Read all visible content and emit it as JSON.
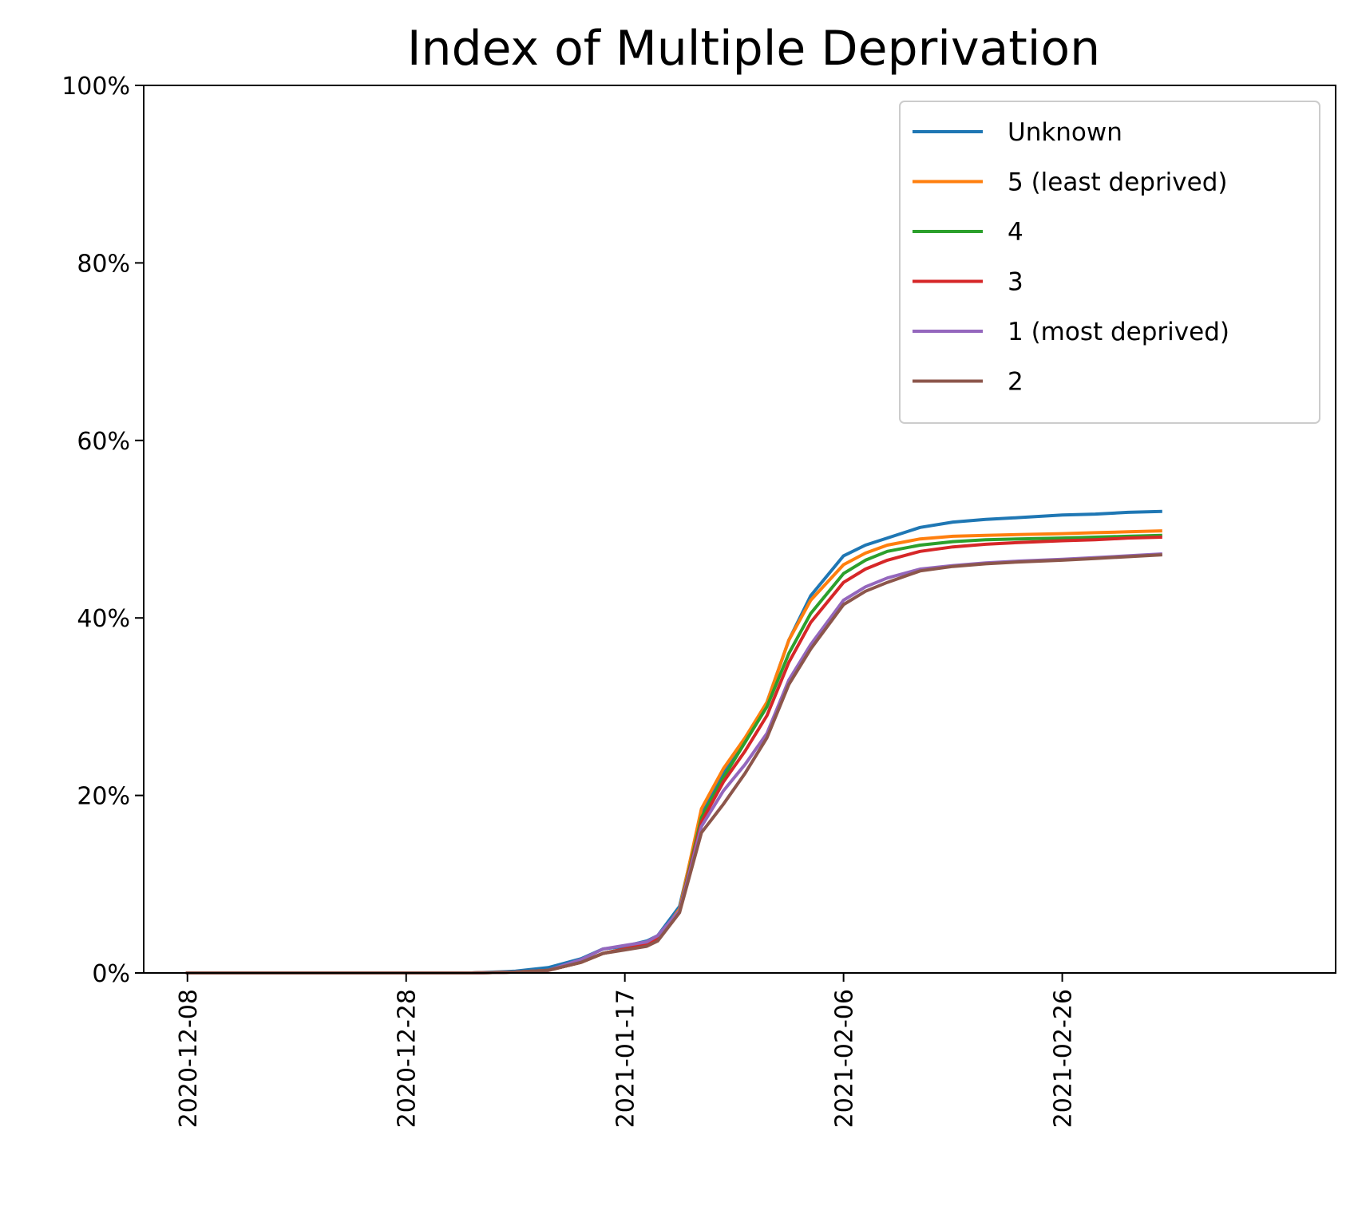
{
  "chart_data": {
    "type": "line",
    "title": "Index of Multiple Deprivation",
    "xlabel": "",
    "ylabel": "",
    "x_type": "date",
    "xlim": [
      "2020-12-04",
      "2021-03-23"
    ],
    "ylim": [
      0,
      100
    ],
    "y_format": "percent",
    "y_ticks": [
      0,
      20,
      40,
      60,
      80,
      100
    ],
    "y_tick_labels": [
      "0%",
      "20%",
      "40%",
      "60%",
      "80%",
      "100%"
    ],
    "x_ticks": [
      "2020-12-08",
      "2020-12-28",
      "2021-01-17",
      "2021-02-06",
      "2021-02-26"
    ],
    "grid": false,
    "legend_position": "top-right",
    "x": [
      "2020-12-08",
      "2020-12-18",
      "2020-12-28",
      "2021-01-03",
      "2021-01-07",
      "2021-01-10",
      "2021-01-13",
      "2021-01-15",
      "2021-01-17",
      "2021-01-19",
      "2021-01-20",
      "2021-01-22",
      "2021-01-24",
      "2021-01-26",
      "2021-01-28",
      "2021-01-30",
      "2021-02-01",
      "2021-02-03",
      "2021-02-06",
      "2021-02-08",
      "2021-02-10",
      "2021-02-13",
      "2021-02-16",
      "2021-02-19",
      "2021-02-22",
      "2021-02-26",
      "2021-03-01",
      "2021-03-04",
      "2021-03-07"
    ],
    "series": [
      {
        "name": "Unknown",
        "color": "#1f77b4",
        "values": [
          0,
          0,
          0,
          0,
          0.2,
          0.6,
          1.6,
          2.7,
          3.0,
          3.6,
          4.2,
          7.5,
          18.0,
          22.5,
          26.0,
          30.5,
          37.5,
          42.5,
          47.0,
          48.2,
          49.0,
          50.2,
          50.8,
          51.1,
          51.3,
          51.6,
          51.7,
          51.9,
          52.0
        ]
      },
      {
        "name": "5 (least deprived)",
        "color": "#ff7f0e",
        "values": [
          0,
          0,
          0,
          0,
          0.1,
          0.3,
          1.2,
          2.2,
          2.7,
          3.2,
          3.8,
          7.2,
          18.5,
          23.0,
          26.5,
          30.5,
          37.5,
          42.0,
          46.0,
          47.3,
          48.2,
          48.9,
          49.2,
          49.3,
          49.4,
          49.5,
          49.6,
          49.7,
          49.8
        ]
      },
      {
        "name": "4",
        "color": "#2ca02c",
        "values": [
          0,
          0,
          0,
          0,
          0.1,
          0.3,
          1.2,
          2.2,
          2.7,
          3.2,
          3.8,
          7.0,
          17.5,
          22.0,
          26.0,
          30.0,
          36.0,
          40.5,
          45.0,
          46.5,
          47.5,
          48.2,
          48.6,
          48.8,
          48.9,
          49.0,
          49.1,
          49.2,
          49.3
        ]
      },
      {
        "name": "3",
        "color": "#d62728",
        "values": [
          0,
          0,
          0,
          0,
          0.1,
          0.3,
          1.2,
          2.2,
          2.7,
          3.2,
          3.8,
          7.0,
          17.0,
          21.5,
          25.0,
          29.0,
          35.0,
          39.5,
          44.0,
          45.5,
          46.5,
          47.5,
          48.0,
          48.3,
          48.5,
          48.7,
          48.8,
          49.0,
          49.1
        ]
      },
      {
        "name": "1 (most deprived)",
        "color": "#9467bd",
        "values": [
          0,
          0,
          0,
          0,
          0.1,
          0.3,
          1.5,
          2.7,
          3.1,
          3.5,
          4.2,
          7.0,
          16.5,
          20.5,
          23.5,
          27.0,
          33.0,
          37.0,
          42.0,
          43.5,
          44.5,
          45.5,
          45.9,
          46.2,
          46.4,
          46.6,
          46.8,
          47.0,
          47.2
        ]
      },
      {
        "name": "2",
        "color": "#8c564b",
        "values": [
          0,
          0,
          0,
          0,
          0.1,
          0.3,
          1.2,
          2.2,
          2.6,
          3.0,
          3.6,
          6.8,
          15.8,
          19.0,
          22.5,
          26.5,
          32.5,
          36.5,
          41.5,
          43.0,
          44.0,
          45.3,
          45.8,
          46.1,
          46.3,
          46.5,
          46.7,
          46.9,
          47.1
        ]
      }
    ]
  }
}
